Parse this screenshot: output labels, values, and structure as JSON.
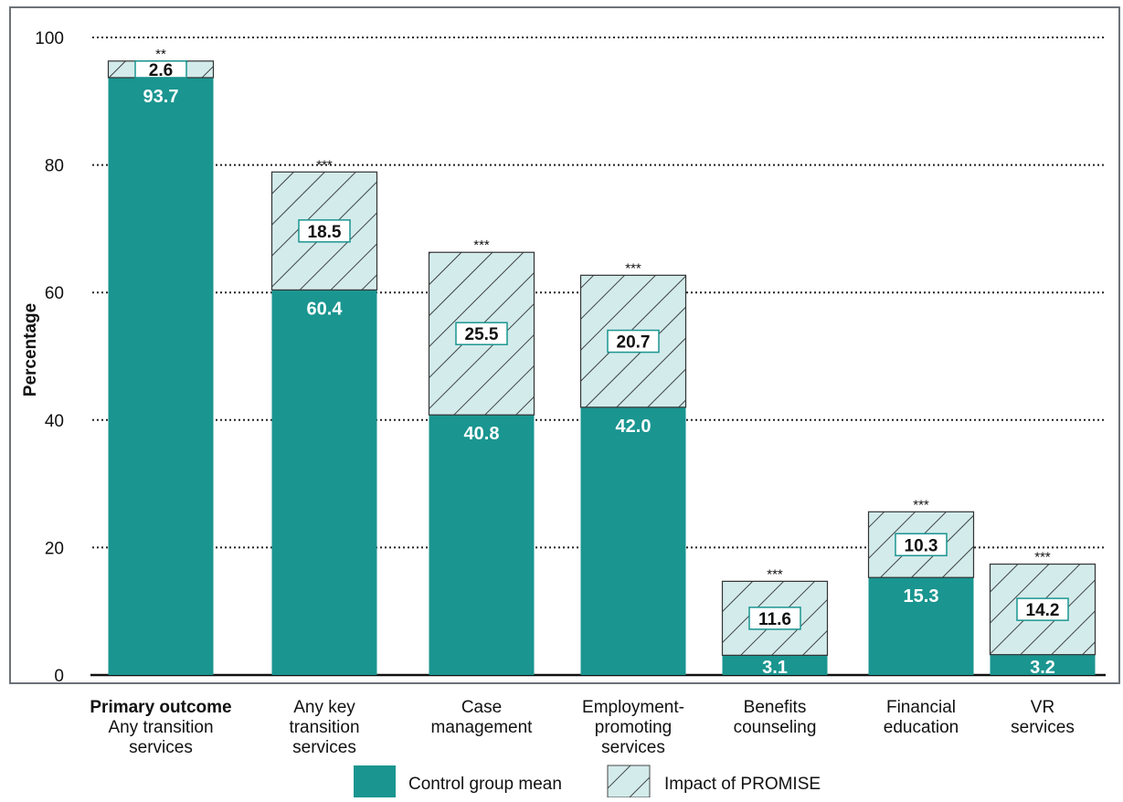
{
  "colors": {
    "control": "#1a9590",
    "impact_fill": "#d3ebeb",
    "impact_stroke": "#1a1a1a",
    "label_box_stroke": "#1a9590",
    "frame": "#6d7278",
    "grid": "#222222"
  },
  "chart_data": {
    "type": "bar",
    "stacked": true,
    "ylabel": "Percentage",
    "ylim": [
      0,
      100
    ],
    "yticks": [
      "0",
      "20",
      "40",
      "60",
      "80",
      "100"
    ],
    "ytick_values": [
      0,
      20,
      40,
      60,
      80,
      100
    ],
    "grid": "dotted horizontal",
    "legend_position": "bottom",
    "categories": [
      {
        "bold": "Primary outcome",
        "lines": [
          "Any transition",
          "services"
        ]
      },
      {
        "bold": "",
        "lines": [
          "Any key",
          "transition",
          "services"
        ]
      },
      {
        "bold": "",
        "lines": [
          "Case",
          "management"
        ]
      },
      {
        "bold": "",
        "lines": [
          "Employment-",
          "promoting",
          "services"
        ]
      },
      {
        "bold": "",
        "lines": [
          "Benefits",
          "counseling"
        ]
      },
      {
        "bold": "",
        "lines": [
          "Financial",
          "education"
        ]
      },
      {
        "bold": "",
        "lines": [
          "VR",
          "services"
        ]
      }
    ],
    "series": [
      {
        "name": "Control group mean",
        "style": "solid",
        "values": [
          93.7,
          60.4,
          40.8,
          42.0,
          3.1,
          15.3,
          3.2
        ],
        "labels": [
          "93.7",
          "60.4",
          "40.8",
          "42.0",
          "3.1",
          "15.3",
          "3.2"
        ]
      },
      {
        "name": "Impact of PROMISE",
        "style": "hatched",
        "values": [
          2.6,
          18.5,
          25.5,
          20.7,
          11.6,
          10.3,
          14.2
        ],
        "labels": [
          "2.6",
          "18.5",
          "25.5",
          "20.7",
          "11.6",
          "10.3",
          "14.2"
        ]
      }
    ],
    "significance": [
      "**",
      "***",
      "***",
      "***",
      "***",
      "***",
      "***"
    ]
  }
}
